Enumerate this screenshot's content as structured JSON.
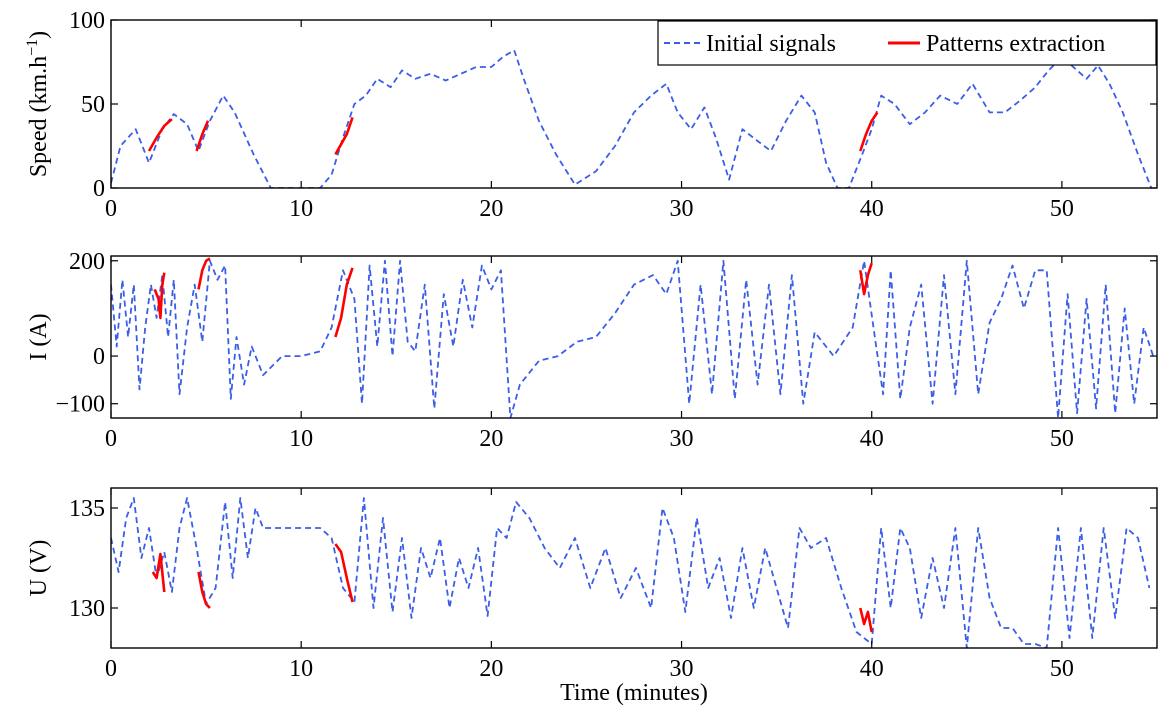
{
  "chart_data": [
    {
      "type": "line",
      "ylabel": "Speed (km.h",
      "ylabel_sup": "−1",
      "ylabel_tail": ")",
      "xlim": [
        0,
        55
      ],
      "ylim": [
        0,
        100
      ],
      "xticks": [
        0,
        10,
        20,
        30,
        40,
        50
      ],
      "yticks": [
        0,
        50,
        100
      ],
      "legend": {
        "position": "top-right",
        "entries": [
          "Initial signals",
          "Patterns extraction"
        ]
      },
      "series": [
        {
          "name": "Initial signals",
          "color": "#3b5ee8",
          "style": "dashed",
          "x": [
            0,
            0.5,
            1.3,
            2.0,
            2.7,
            3.3,
            4.0,
            4.6,
            5.2,
            5.9,
            6.5,
            7.5,
            8.4,
            9.2,
            10.2,
            11.0,
            11.6,
            12.2,
            12.8,
            13.4,
            14.0,
            14.7,
            15.3,
            16.0,
            16.8,
            17.6,
            18.4,
            19.2,
            20.0,
            20.6,
            21.2,
            21.7,
            22.5,
            23.4,
            24.4,
            25.5,
            26.5,
            27.5,
            28.4,
            29.2,
            29.8,
            30.5,
            31.2,
            31.8,
            32.5,
            33.2,
            34.0,
            34.7,
            35.5,
            36.3,
            37.0,
            37.6,
            38.2,
            38.8,
            39.5,
            40.0,
            40.5,
            41.2,
            42.0,
            42.8,
            43.6,
            44.5,
            45.3,
            46.2,
            47.0,
            47.8,
            48.6,
            49.3,
            50.0,
            50.6,
            51.3,
            51.9,
            52.5,
            53.2,
            54.0,
            54.7
          ],
          "y": [
            3,
            25,
            35,
            15,
            35,
            44,
            38,
            22,
            40,
            55,
            45,
            20,
            0,
            0,
            0,
            0,
            8,
            30,
            50,
            55,
            65,
            60,
            70,
            65,
            68,
            64,
            68,
            72,
            72,
            78,
            82,
            65,
            40,
            20,
            2,
            10,
            25,
            45,
            55,
            62,
            45,
            35,
            48,
            30,
            5,
            35,
            28,
            22,
            40,
            55,
            45,
            15,
            0,
            0,
            20,
            35,
            55,
            50,
            38,
            45,
            55,
            50,
            62,
            45,
            45,
            52,
            60,
            70,
            78,
            72,
            65,
            73,
            62,
            45,
            20,
            0
          ]
        },
        {
          "name": "Patterns extraction",
          "color": "#ff0000",
          "style": "solid",
          "segments": [
            {
              "x": [
                2.0,
                2.4,
                2.8,
                3.2
              ],
              "y": [
                22,
                30,
                37,
                41
              ]
            },
            {
              "x": [
                4.5,
                4.8,
                5.1
              ],
              "y": [
                22,
                32,
                40
              ]
            },
            {
              "x": [
                11.8,
                12.1,
                12.4,
                12.7
              ],
              "y": [
                20,
                26,
                32,
                42
              ]
            },
            {
              "x": [
                39.4,
                39.7,
                40.0,
                40.3
              ],
              "y": [
                22,
                32,
                40,
                45
              ]
            }
          ]
        }
      ]
    },
    {
      "type": "line",
      "ylabel": "I (A)",
      "xlim": [
        0,
        55
      ],
      "ylim": [
        -130,
        210
      ],
      "xticks": [
        0,
        10,
        20,
        30,
        40,
        50
      ],
      "yticks": [
        -100,
        0,
        200
      ],
      "series": [
        {
          "name": "Initial signals",
          "color": "#3b5ee8",
          "style": "dashed",
          "x": [
            0,
            0.3,
            0.6,
            0.9,
            1.2,
            1.5,
            1.8,
            2.1,
            2.4,
            2.7,
            3.0,
            3.3,
            3.6,
            4.0,
            4.4,
            4.8,
            5.2,
            5.6,
            6.0,
            6.3,
            6.6,
            7.0,
            7.4,
            8.0,
            9.0,
            10.0,
            11.0,
            11.6,
            12.2,
            12.8,
            13.2,
            13.6,
            14.0,
            14.4,
            14.8,
            15.2,
            15.6,
            16.0,
            16.5,
            17.0,
            17.5,
            18.0,
            18.5,
            19.0,
            19.5,
            20.0,
            20.5,
            21.0,
            21.5,
            22.5,
            23.5,
            24.5,
            25.5,
            26.5,
            27.5,
            28.5,
            29.2,
            29.8,
            30.4,
            31.0,
            31.6,
            32.2,
            32.8,
            33.4,
            34.0,
            34.6,
            35.2,
            35.8,
            36.4,
            37.0,
            38.0,
            39.0,
            39.6,
            40.2,
            40.6,
            41.0,
            41.5,
            42.0,
            42.6,
            43.2,
            43.8,
            44.4,
            45.0,
            45.6,
            46.2,
            46.8,
            47.4,
            48.0,
            48.6,
            49.2,
            49.8,
            50.3,
            50.8,
            51.3,
            51.8,
            52.3,
            52.8,
            53.3,
            53.8,
            54.3,
            54.8
          ],
          "y": [
            150,
            20,
            160,
            40,
            150,
            -70,
            60,
            150,
            80,
            170,
            40,
            160,
            -80,
            60,
            150,
            30,
            200,
            160,
            190,
            -90,
            40,
            -60,
            20,
            -40,
            0,
            0,
            10,
            60,
            180,
            120,
            -100,
            190,
            20,
            200,
            0,
            200,
            30,
            10,
            150,
            -110,
            130,
            20,
            160,
            60,
            190,
            140,
            180,
            -130,
            -60,
            -10,
            0,
            30,
            40,
            90,
            150,
            170,
            130,
            200,
            -100,
            150,
            -80,
            200,
            -90,
            160,
            -60,
            150,
            -80,
            170,
            -100,
            50,
            0,
            60,
            200,
            30,
            -80,
            180,
            -90,
            60,
            150,
            -100,
            170,
            -80,
            200,
            -80,
            70,
            120,
            190,
            100,
            180,
            180,
            -130,
            130,
            -120,
            120,
            -110,
            150,
            -120,
            100,
            -100,
            60,
            0
          ]
        },
        {
          "name": "Patterns extraction",
          "color": "#ff0000",
          "style": "solid",
          "segments": [
            {
              "x": [
                2.3,
                2.5,
                2.6,
                2.7,
                2.8
              ],
              "y": [
                140,
                120,
                80,
                150,
                175
              ]
            },
            {
              "x": [
                4.6,
                4.8,
                5.0,
                5.2
              ],
              "y": [
                140,
                180,
                200,
                205
              ]
            },
            {
              "x": [
                11.8,
                12.1,
                12.4,
                12.7
              ],
              "y": [
                40,
                80,
                150,
                185
              ]
            },
            {
              "x": [
                39.4,
                39.6,
                39.8,
                40.0
              ],
              "y": [
                180,
                130,
                170,
                195
              ]
            }
          ]
        }
      ]
    },
    {
      "type": "line",
      "ylabel": "U (V)",
      "xlabel": "Time (minutes)",
      "xlim": [
        0,
        55
      ],
      "ylim": [
        128,
        136
      ],
      "xticks": [
        0,
        10,
        20,
        30,
        40,
        50
      ],
      "yticks": [
        130,
        135
      ],
      "series": [
        {
          "name": "Initial signals",
          "color": "#3b5ee8",
          "style": "dashed",
          "x": [
            0,
            0.4,
            0.8,
            1.2,
            1.6,
            2.0,
            2.4,
            2.8,
            3.2,
            3.6,
            4.0,
            4.5,
            5.0,
            5.5,
            6.0,
            6.4,
            6.8,
            7.2,
            7.6,
            8.0,
            9.0,
            10.0,
            11.0,
            11.6,
            12.2,
            12.8,
            13.3,
            13.8,
            14.3,
            14.8,
            15.3,
            15.8,
            16.3,
            16.8,
            17.3,
            17.8,
            18.3,
            18.8,
            19.3,
            19.8,
            20.3,
            20.8,
            21.3,
            22.0,
            22.8,
            23.6,
            24.4,
            25.2,
            26.0,
            26.8,
            27.6,
            28.4,
            29.0,
            29.6,
            30.2,
            30.8,
            31.4,
            32.0,
            32.6,
            33.2,
            33.8,
            34.4,
            35.0,
            35.6,
            36.2,
            36.8,
            37.6,
            38.4,
            39.2,
            40.0,
            40.5,
            41.0,
            41.5,
            42.0,
            42.6,
            43.2,
            43.8,
            44.4,
            45.0,
            45.6,
            46.2,
            46.8,
            47.4,
            48.0,
            48.6,
            49.2,
            49.8,
            50.4,
            51.0,
            51.6,
            52.2,
            52.8,
            53.4,
            54.0,
            54.6
          ],
          "y": [
            133.5,
            131.8,
            134.5,
            135.5,
            132.5,
            134.0,
            131.5,
            132.8,
            130.8,
            134.0,
            135.5,
            133.0,
            130.2,
            131.0,
            135.3,
            131.5,
            135.5,
            132.5,
            135.0,
            134.0,
            134.0,
            134.0,
            134.0,
            133.5,
            131.0,
            130.3,
            135.5,
            130.0,
            134.5,
            129.8,
            133.5,
            129.5,
            133.0,
            131.5,
            133.5,
            130.0,
            132.5,
            131.0,
            133.0,
            129.6,
            134.0,
            133.5,
            135.3,
            134.5,
            133.0,
            132.0,
            133.5,
            131.0,
            133.0,
            130.5,
            132.0,
            130.0,
            135.0,
            133.5,
            129.8,
            134.5,
            131.0,
            132.5,
            129.5,
            133.0,
            130.0,
            133.0,
            131.0,
            129.0,
            134.0,
            133.0,
            133.5,
            131.0,
            128.8,
            128.2,
            134.0,
            130.0,
            134.0,
            133.0,
            129.5,
            132.5,
            130.0,
            134.0,
            128.0,
            134.0,
            130.5,
            129.0,
            129.0,
            128.2,
            128.2,
            128.0,
            134.0,
            128.5,
            134.0,
            128.5,
            134.0,
            129.5,
            134.0,
            133.5,
            131.0
          ]
        },
        {
          "name": "Patterns extraction",
          "color": "#ff0000",
          "style": "solid",
          "segments": [
            {
              "x": [
                2.2,
                2.4,
                2.6,
                2.8
              ],
              "y": [
                131.8,
                131.5,
                132.7,
                130.8
              ]
            },
            {
              "x": [
                4.6,
                4.8,
                5.0,
                5.2
              ],
              "y": [
                131.8,
                130.8,
                130.2,
                130.0
              ]
            },
            {
              "x": [
                11.8,
                12.1,
                12.4,
                12.7
              ],
              "y": [
                133.2,
                132.8,
                131.5,
                130.3
              ]
            },
            {
              "x": [
                39.4,
                39.6,
                39.8,
                40.0
              ],
              "y": [
                130.0,
                129.2,
                129.8,
                128.8
              ]
            }
          ]
        }
      ]
    }
  ]
}
